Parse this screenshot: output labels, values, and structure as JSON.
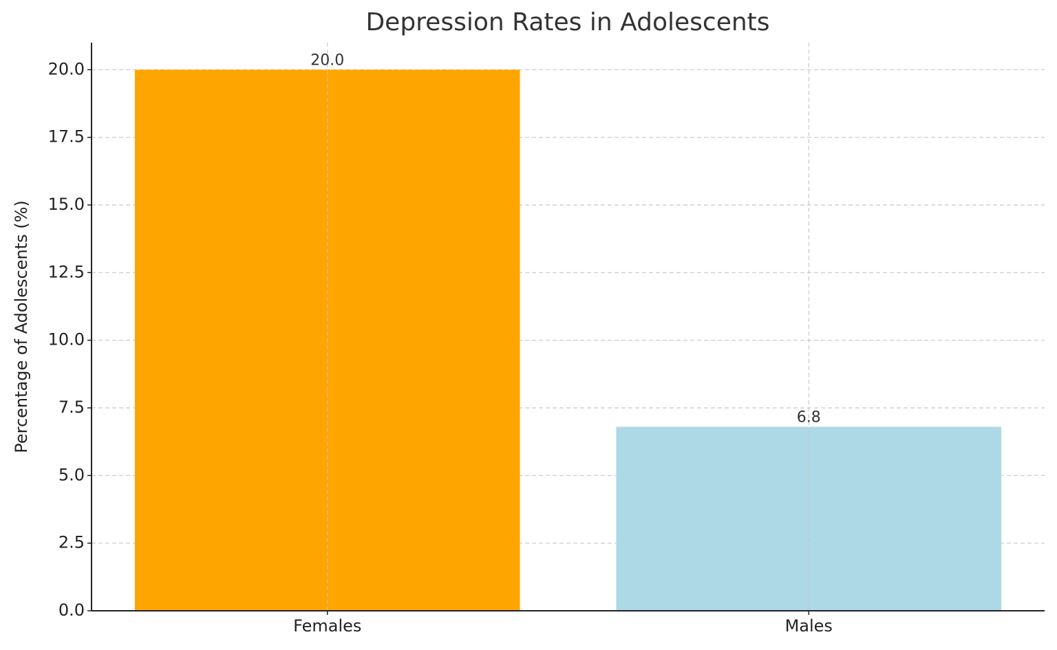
{
  "chart_data": {
    "type": "bar",
    "title": "Depression Rates in Adolescents",
    "ylabel": "Percentage of Adolescents (%)",
    "categories": [
      "Females",
      "Males"
    ],
    "values": [
      20.0,
      6.8
    ],
    "value_labels": [
      "20.0",
      "6.8"
    ],
    "colors": [
      "#FFA500",
      "#ADD8E6"
    ],
    "ylim": [
      0,
      21
    ],
    "yticks": [
      {
        "value": 0,
        "label": "0.0"
      },
      2.5,
      {
        "value": 5,
        "label": "5.0"
      },
      7.5,
      {
        "value": 10,
        "label": "10.0"
      },
      12.5,
      {
        "value": 15,
        "label": "15.0"
      },
      17.5,
      {
        "value": 20,
        "label": "20.0"
      }
    ],
    "grid": true
  }
}
